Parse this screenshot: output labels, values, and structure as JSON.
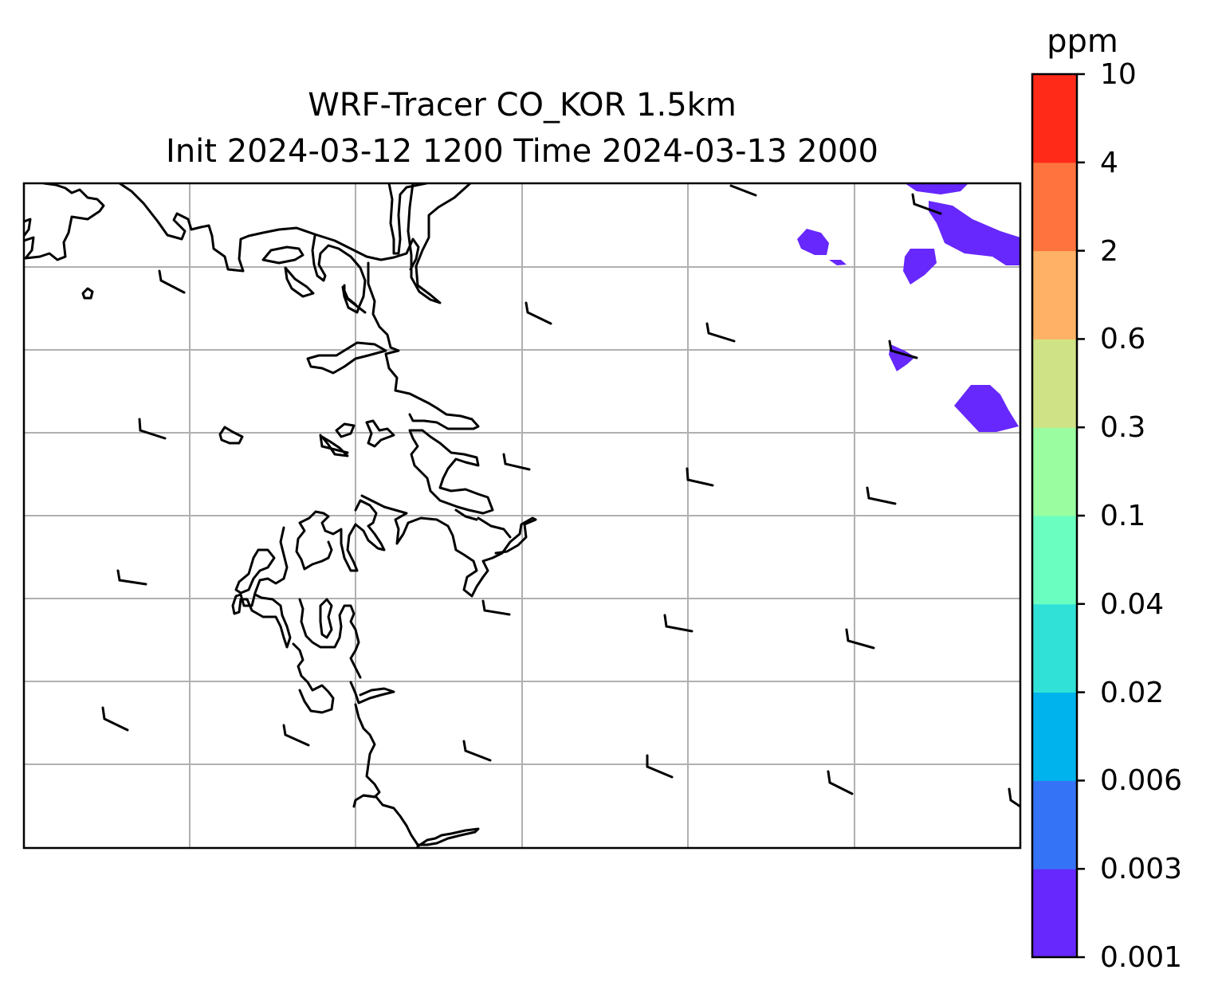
{
  "title": {
    "line1": "WRF-Tracer CO_KOR 1.5km",
    "line2": "Init 2024-03-12 1200 Time 2024-03-13 2000"
  },
  "colorbar": {
    "unit": "ppm",
    "ticks": [
      "0.001",
      "0.003",
      "0.006",
      "0.02",
      "0.04",
      "0.1",
      "0.3",
      "0.6",
      "2",
      "4",
      "10"
    ],
    "colors": [
      "#6628fc",
      "#3573f6",
      "#00b3ed",
      "#30e1d8",
      "#6affc0",
      "#9afea0",
      "#d0e286",
      "#ffb166",
      "#ff733e",
      "#ff2a17"
    ]
  },
  "map": {
    "gridlines": true,
    "coastline_color": "#000000",
    "gridline_color": "#b0b0b0",
    "tracer_color": "#6628fc"
  }
}
